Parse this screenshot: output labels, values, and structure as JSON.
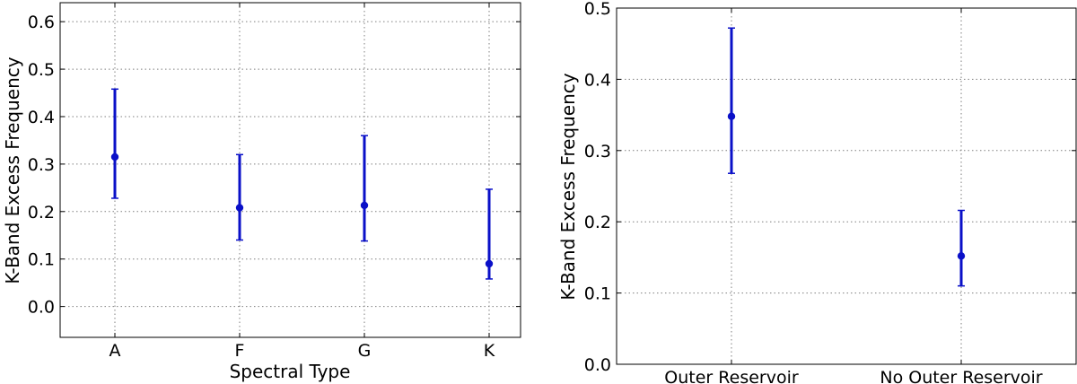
{
  "chart_data": [
    {
      "type": "scatter",
      "title": "",
      "xlabel": "Spectral Type",
      "ylabel": "K-Band Excess Frequency",
      "categories": [
        "A",
        "F",
        "G",
        "K"
      ],
      "ylim": [
        -0.065,
        0.64
      ],
      "yticks": [
        "0.0",
        "0.1",
        "0.2",
        "0.3",
        "0.4",
        "0.5",
        "0.6"
      ],
      "grid": true,
      "legend": "none",
      "color": "#0a10c8",
      "series": [
        {
          "values": [
            0.315,
            0.208,
            0.213,
            0.09
          ],
          "lower": [
            0.228,
            0.14,
            0.138,
            0.058
          ],
          "upper": [
            0.458,
            0.32,
            0.36,
            0.247
          ]
        }
      ]
    },
    {
      "type": "scatter",
      "title": "",
      "xlabel": "",
      "ylabel": "K-Band Excess Frequency",
      "categories": [
        "Outer Reservoir",
        "No Outer Reservoir"
      ],
      "ylim": [
        0.0,
        0.5
      ],
      "yticks": [
        "0.0",
        "0.1",
        "0.2",
        "0.3",
        "0.4",
        "0.5"
      ],
      "grid": true,
      "legend": "none",
      "color": "#0a10c8",
      "series": [
        {
          "values": [
            0.348,
            0.152
          ],
          "lower": [
            0.268,
            0.11
          ],
          "upper": [
            0.472,
            0.216
          ]
        }
      ]
    }
  ]
}
